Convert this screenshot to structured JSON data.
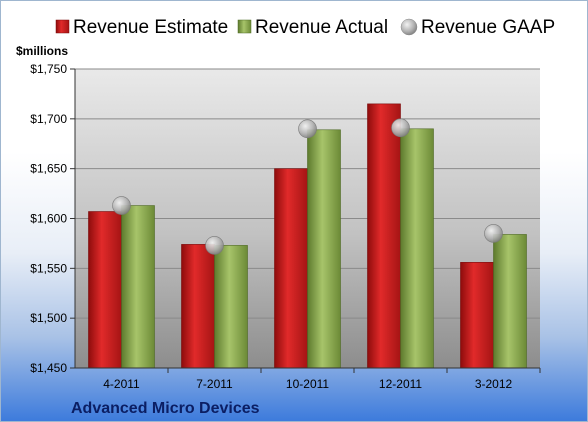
{
  "chart_data": {
    "type": "bar",
    "unit_label": "$millions",
    "categories": [
      "4-2011",
      "7-2011",
      "10-2011",
      "12-2011",
      "3-2012"
    ],
    "series": [
      {
        "name": "Revenue Estimate",
        "kind": "bar",
        "color": "#d21e1e",
        "values": [
          1607,
          1574,
          1650,
          1715,
          1556
        ]
      },
      {
        "name": "Revenue Actual",
        "kind": "bar",
        "color": "#8fad55",
        "values": [
          1613,
          1573,
          1689,
          1690,
          1584
        ]
      },
      {
        "name": "Revenue GAAP",
        "kind": "marker",
        "color": "#b5b5b5",
        "values": [
          1613,
          1573,
          1690,
          1691,
          1585
        ]
      }
    ],
    "ylim": [
      1450,
      1750
    ],
    "yticks": [
      1450,
      1500,
      1550,
      1600,
      1650,
      1700,
      1750
    ],
    "ytick_labels": [
      "$1,450",
      "$1,500",
      "$1,550",
      "$1,600",
      "$1,650",
      "$1,700",
      "$1,750"
    ],
    "grid": true,
    "legend_position": "top"
  },
  "company": "Advanced Micro Devices"
}
